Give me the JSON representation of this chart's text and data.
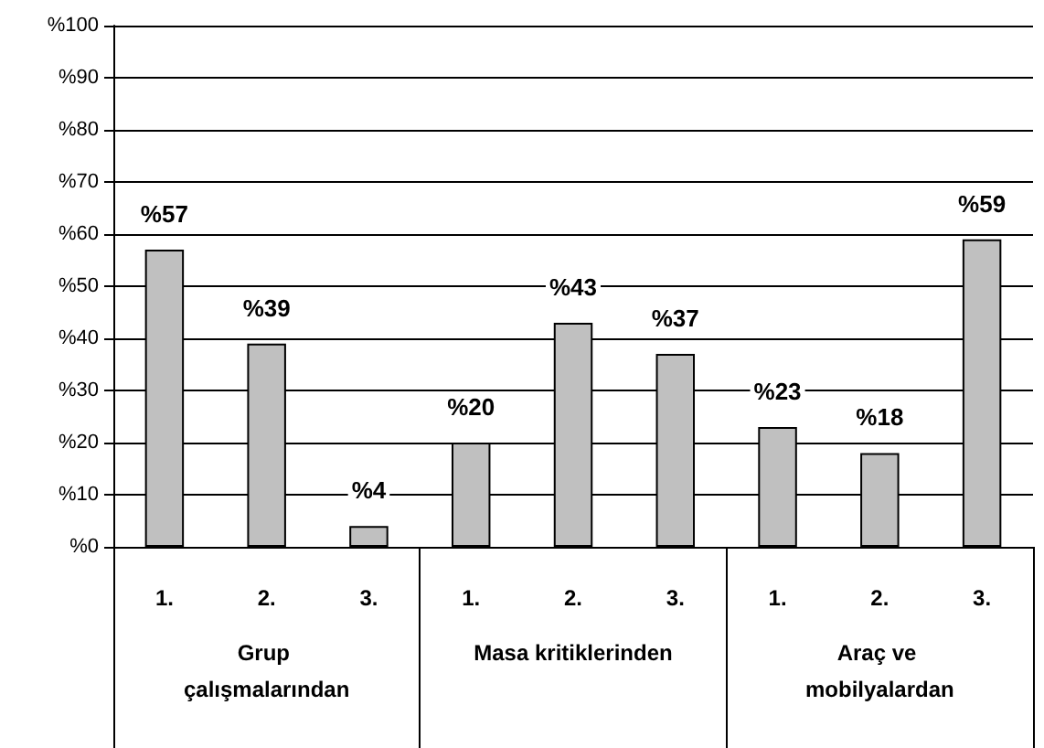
{
  "chart_data": {
    "type": "bar",
    "categories": [
      "1.",
      "2.",
      "3.",
      "1.",
      "2.",
      "3.",
      "1.",
      "2.",
      "3."
    ],
    "values": [
      57,
      39,
      4,
      20,
      43,
      37,
      23,
      18,
      59
    ],
    "value_labels": [
      "%57",
      "%39",
      "%4",
      "%20",
      "%43",
      "%37",
      "%23",
      "%18",
      "%59"
    ],
    "color": "#c0c0c0",
    "ylim": [
      0,
      100
    ],
    "yticks": [
      {
        "value": 0,
        "label": "%0"
      },
      {
        "value": 10,
        "label": "%10"
      },
      {
        "value": 20,
        "label": "%20"
      },
      {
        "value": 30,
        "label": "%30"
      },
      {
        "value": 40,
        "label": "%40"
      },
      {
        "value": 50,
        "label": "%50"
      },
      {
        "value": 60,
        "label": "%60"
      },
      {
        "value": 70,
        "label": "%70"
      },
      {
        "value": 80,
        "label": "%80"
      },
      {
        "value": 90,
        "label": "%90"
      },
      {
        "value": 100,
        "label": "%100"
      }
    ],
    "annotations": [
      "Grup çalışmalarından",
      "Masa kritiklerinden",
      "Araç ve mobilyalardan"
    ],
    "grid": "y"
  }
}
